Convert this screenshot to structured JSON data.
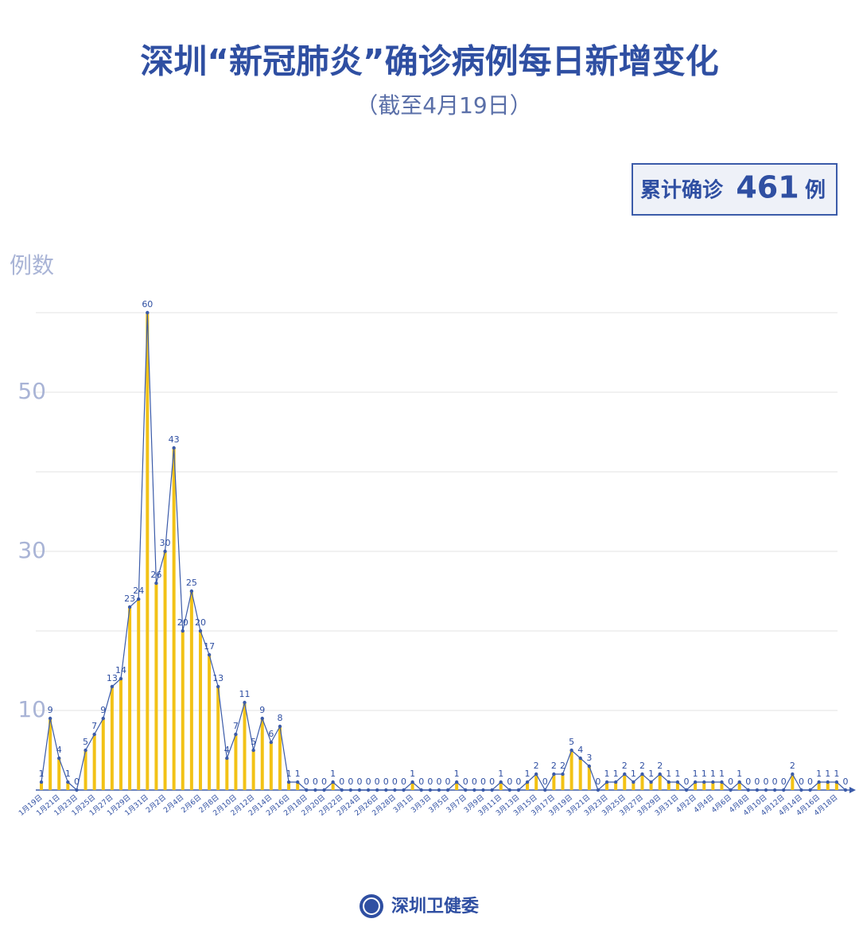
{
  "title": "深圳“新冠肺炎”确诊病例每日新增变化",
  "subtitle": "（截至4月19日）",
  "summary": {
    "prefix": "累计确诊",
    "value": 461,
    "suffix": "例"
  },
  "footer": "深圳卫健委",
  "chart_data": {
    "type": "bar-line",
    "y_label": "例数",
    "categories": [
      "1月19日",
      null,
      "1月21日",
      null,
      "1月23日",
      null,
      "1月25日",
      null,
      "1月27日",
      null,
      "1月29日",
      null,
      "1月31日",
      null,
      "2月2日",
      null,
      "2月4日",
      null,
      "2月6日",
      null,
      "2月8日",
      null,
      "2月10日",
      null,
      "2月12日",
      null,
      "2月14日",
      null,
      "2月16日",
      null,
      "2月18日",
      null,
      "2月20日",
      null,
      "2月22日",
      null,
      "2月24日",
      null,
      "2月26日",
      null,
      "2月28日",
      null,
      "3月1日",
      null,
      "3月3日",
      null,
      "3月5日",
      null,
      "3月7日",
      null,
      "3月9日",
      null,
      "3月11日",
      null,
      "3月13日",
      null,
      "3月15日",
      null,
      "3月17日",
      null,
      "3月19日",
      null,
      "3月21日",
      null,
      "3月23日",
      null,
      "3月25日",
      null,
      "3月27日",
      null,
      "3月29日",
      null,
      "3月31日",
      null,
      "4月2日",
      null,
      "4月4日",
      null,
      "4月6日",
      null,
      "4月8日",
      null,
      "4月10日",
      null,
      "4月12日",
      null,
      "4月14日",
      null,
      "4月16日",
      null,
      "4月18日",
      null
    ],
    "values": [
      1,
      9,
      4,
      1,
      0,
      5,
      7,
      9,
      13,
      14,
      23,
      24,
      60,
      26,
      30,
      43,
      20,
      25,
      20,
      17,
      13,
      4,
      7,
      11,
      5,
      9,
      6,
      8,
      1,
      1,
      0,
      0,
      0,
      1,
      0,
      0,
      0,
      0,
      0,
      0,
      0,
      0,
      1,
      0,
      0,
      0,
      0,
      1,
      0,
      0,
      0,
      0,
      1,
      0,
      0,
      1,
      2,
      0,
      2,
      2,
      5,
      4,
      3,
      0,
      1,
      1,
      2,
      1,
      2,
      1,
      2,
      1,
      1,
      0,
      1,
      1,
      1,
      1,
      0,
      1,
      0,
      0,
      0,
      0,
      0,
      2,
      0,
      0,
      1,
      1,
      1,
      0
    ],
    "bar_color": "#f2c216",
    "line_color": "#3b5ba9",
    "ylim": [
      0,
      60
    ],
    "yticks": [
      10,
      30,
      50
    ],
    "grid_values": [
      10,
      20,
      30,
      40,
      50,
      60
    ],
    "grid": true
  }
}
